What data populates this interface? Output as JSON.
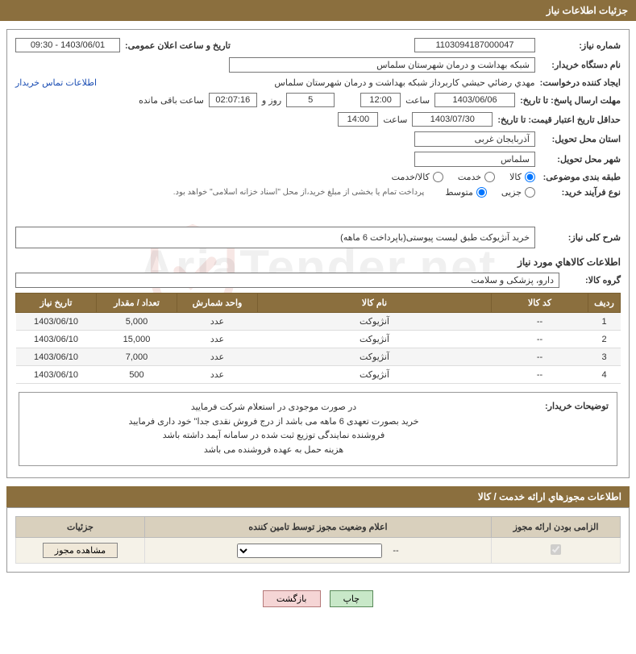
{
  "header": {
    "title": "جزئیات اطلاعات نیاز"
  },
  "fields": {
    "need_number_label": "شماره نیاز:",
    "need_number": "1103094187000047",
    "announce_datetime_label": "تاریخ و ساعت اعلان عمومی:",
    "announce_datetime": "1403/06/01 - 09:30",
    "buyer_org_label": "نام دستگاه خریدار:",
    "buyer_org": "شبکه بهداشت و درمان  شهرستان سلماس",
    "requester_label": "ایجاد کننده درخواست:",
    "requester": "مهدي رضائي حيشي کاربرداز شبکه بهداشت و درمان  شهرستان سلماس",
    "buyer_contact_link": "اطلاعات تماس خریدار",
    "response_deadline_label": "مهلت ارسال پاسخ: تا تاریخ:",
    "response_deadline_date": "1403/06/06",
    "time_label": "ساعت",
    "response_deadline_time": "12:00",
    "days_label": "روز و",
    "days_value": "5",
    "remaining_time": "02:07:16",
    "remaining_label": "ساعت باقی مانده",
    "price_validity_label": "حداقل تاریخ اعتبار قیمت: تا تاریخ:",
    "price_validity_date": "1403/07/30",
    "price_validity_time": "14:00",
    "delivery_province_label": "استان محل تحویل:",
    "delivery_province": "آذربایجان غربی",
    "delivery_city_label": "شهر محل تحویل:",
    "delivery_city": "سلماس",
    "category_label": "طبقه بندی موضوعی:",
    "category_goods": "کالا",
    "category_service": "خدمت",
    "category_both": "کالا/خدمت",
    "process_type_label": "نوع فرآیند خرید:",
    "process_partial": "جزیی",
    "process_medium": "متوسط",
    "process_note": "پرداخت تمام یا بخشی از مبلغ خرید،از محل \"اسناد خزانه اسلامی\" خواهد بود.",
    "need_summary_label": "شرح کلی نیاز:",
    "need_summary": "خرید آنژیوکت  طبق لیست پیوستی(باپرداخت 6 ماهه)",
    "goods_info_title": "اطلاعات کالاهاي مورد نیاز",
    "goods_group_label": "گروه کالا:",
    "goods_group": "دارو، پزشکی و سلامت"
  },
  "table": {
    "headers": {
      "row": "ردیف",
      "code": "کد کالا",
      "name": "نام کالا",
      "unit": "واحد شمارش",
      "qty": "تعداد / مقدار",
      "date": "تاریخ نیاز"
    },
    "rows": [
      {
        "row": "1",
        "code": "--",
        "name": "آنژیوکت",
        "unit": "عدد",
        "qty": "5,000",
        "date": "1403/06/10"
      },
      {
        "row": "2",
        "code": "--",
        "name": "آنژیوکت",
        "unit": "عدد",
        "qty": "15,000",
        "date": "1403/06/10"
      },
      {
        "row": "3",
        "code": "--",
        "name": "آنژیوکت",
        "unit": "عدد",
        "qty": "7,000",
        "date": "1403/06/10"
      },
      {
        "row": "4",
        "code": "--",
        "name": "آنژیوکت",
        "unit": "عدد",
        "qty": "500",
        "date": "1403/06/10"
      }
    ]
  },
  "buyer_notes": {
    "label": "توضیحات خریدار:",
    "line1": "در صورت موجودی در استعلام شرکت فرمایید",
    "line2": "خرید بصورت تعهدی 6 ماهه می باشد از درج فروش نقدی جدا\" خود داری فرمایید",
    "line3": "فروشنده نمایندگی توزیع ثبت شده در سامانه آیمد داشته باشد",
    "line4": "هزینه حمل به عهده فروشنده می باشد"
  },
  "license_section": {
    "title": "اطلاعات مجوزهاي ارائه خدمت / کالا",
    "headers": {
      "mandatory": "الزامی بودن ارائه مجوز",
      "status": "اعلام وضعیت مجوز توسط تامین کننده",
      "details": "جزئیات"
    },
    "select_placeholder": "--",
    "view_button": "مشاهده مجوز"
  },
  "buttons": {
    "print": "چاپ",
    "back": "بازگشت"
  },
  "watermark": "AriaTender.net"
}
